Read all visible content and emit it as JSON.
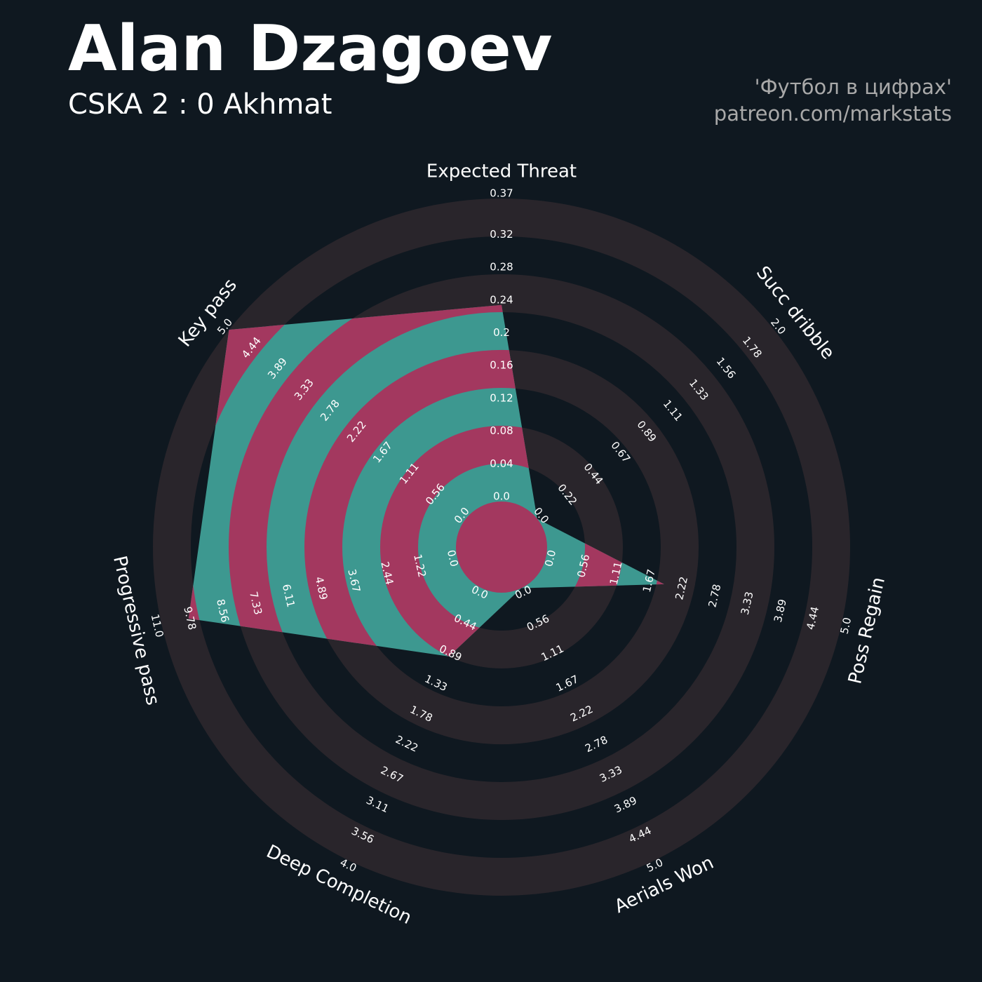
{
  "chart_data": {
    "type": "radar",
    "title": "Alan Dzagoev",
    "subtitle": "CSKA 2 : 0 Akhmat",
    "credits": [
      "'Футбол в цифрах'",
      "patreon.com/markstats"
    ],
    "categories": [
      "Expected Threat",
      "Succ dribble",
      "Poss Regain",
      "Aerials Won",
      "Deep Completion",
      "Progressive pass",
      "Key pass"
    ],
    "values": [
      0.24,
      0,
      2,
      0,
      1,
      10,
      5
    ],
    "axes": [
      {
        "lim": [
          0,
          0.37
        ],
        "ticks": [
          {
            "value": 0,
            "label": "0.0"
          },
          0.04,
          0.08,
          0.12,
          0.16,
          0.2,
          0.24,
          0.28,
          0.32,
          0.37
        ]
      },
      {
        "lim": [
          0,
          2
        ],
        "ticks": [
          {
            "value": 0,
            "label": "0.0"
          },
          0.22,
          0.44,
          0.67,
          0.89,
          1.11,
          1.33,
          1.56,
          1.78,
          {
            "value": 2,
            "label": "2.0"
          }
        ]
      },
      {
        "lim": [
          0,
          5
        ],
        "ticks": [
          {
            "value": 0,
            "label": "0.0"
          },
          0.56,
          1.11,
          1.67,
          2.22,
          2.78,
          3.33,
          3.89,
          4.44,
          {
            "value": 5,
            "label": "5.0"
          }
        ]
      },
      {
        "lim": [
          0,
          5
        ],
        "ticks": [
          {
            "value": 0,
            "label": "0.0"
          },
          0.56,
          1.11,
          1.67,
          2.22,
          2.78,
          3.33,
          3.89,
          4.44,
          {
            "value": 5,
            "label": "5.0"
          }
        ]
      },
      {
        "lim": [
          0,
          4
        ],
        "ticks": [
          {
            "value": 0,
            "label": "0.0"
          },
          0.44,
          0.89,
          1.33,
          1.78,
          2.22,
          2.67,
          3.11,
          3.56,
          {
            "value": 4,
            "label": "4.0"
          }
        ]
      },
      {
        "lim": [
          0,
          11
        ],
        "ticks": [
          {
            "value": 0,
            "label": "0.0"
          },
          1.22,
          2.44,
          3.67,
          4.89,
          6.11,
          7.33,
          8.56,
          9.78,
          {
            "value": 11,
            "label": "11.0"
          }
        ]
      },
      {
        "lim": [
          0,
          5
        ],
        "ticks": [
          {
            "value": 0,
            "label": "0.0"
          },
          0.56,
          1.11,
          1.67,
          2.22,
          2.78,
          3.33,
          3.89,
          4.44,
          {
            "value": 5,
            "label": "5.0"
          }
        ]
      }
    ],
    "colors": {
      "background": "#0f1820",
      "ring": "#29252b",
      "fill": "#3d9890",
      "fill_ring": "#a3385f"
    }
  }
}
